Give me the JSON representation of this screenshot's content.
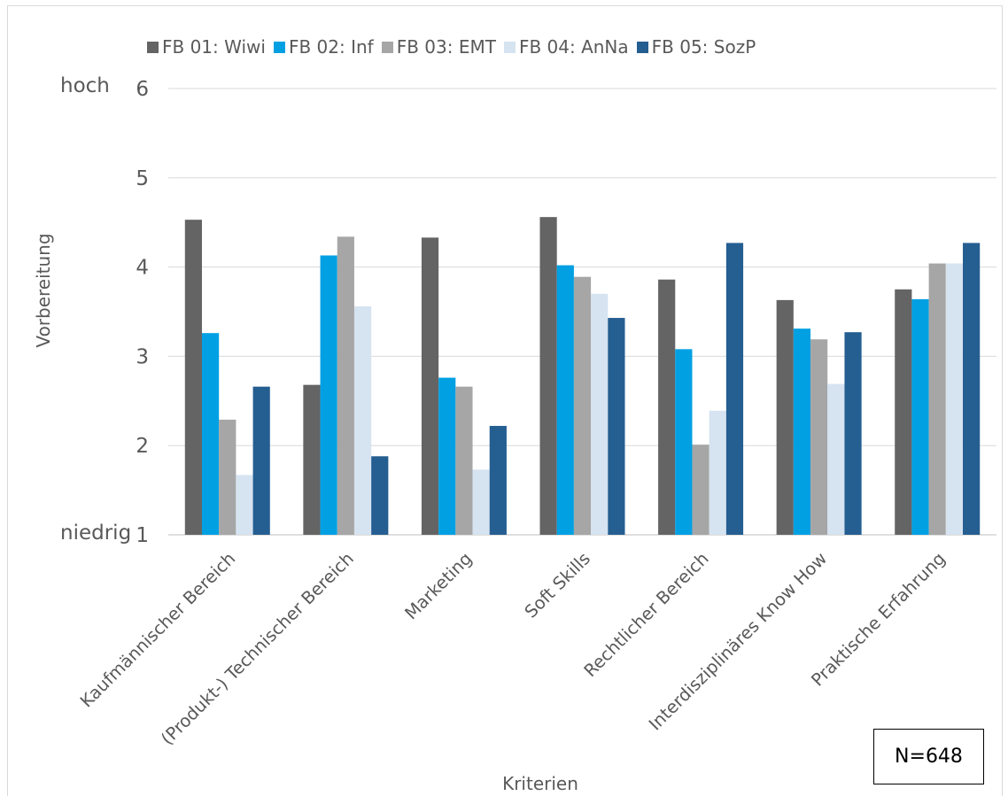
{
  "chart_data": {
    "type": "bar",
    "categories": [
      "Kaufmännischer Bereich",
      "(Produkt-) Technischer Bereich",
      "Marketing",
      "Soft Skills",
      "Rechtlicher Bereich",
      "Interdisziplinäres Know How",
      "Praktische Erfahrung"
    ],
    "series": [
      {
        "name": "FB 01: Wiwi",
        "color": "#646464",
        "values": [
          4.53,
          2.68,
          4.33,
          4.56,
          3.86,
          3.63,
          3.75
        ]
      },
      {
        "name": "FB 02: Inf",
        "color": "#00a0e3",
        "values": [
          3.26,
          4.13,
          2.76,
          4.02,
          3.08,
          3.31,
          3.64
        ]
      },
      {
        "name": "FB 03: EMT",
        "color": "#a6a6a6",
        "values": [
          2.29,
          4.34,
          2.66,
          3.89,
          2.01,
          3.19,
          4.04
        ]
      },
      {
        "name": "FB 04: AnNa",
        "color": "#d6e3f0",
        "values": [
          1.67,
          3.56,
          1.73,
          3.7,
          2.39,
          2.69,
          4.04
        ]
      },
      {
        "name": "FB 05: SozP",
        "color": "#255e91",
        "values": [
          2.66,
          1.88,
          2.22,
          3.43,
          4.27,
          3.27,
          4.27
        ]
      }
    ],
    "ylim": [
      1,
      6
    ],
    "yticks": [
      1,
      2,
      3,
      4,
      5,
      6
    ],
    "ylabel": "Vorbereitung",
    "xlabel": "Kriterien",
    "ytick_annotations": {
      "top": "hoch",
      "bottom": "niedrig"
    },
    "grid": true,
    "legend": "top"
  },
  "annotation": {
    "sample_size": "N=648"
  }
}
